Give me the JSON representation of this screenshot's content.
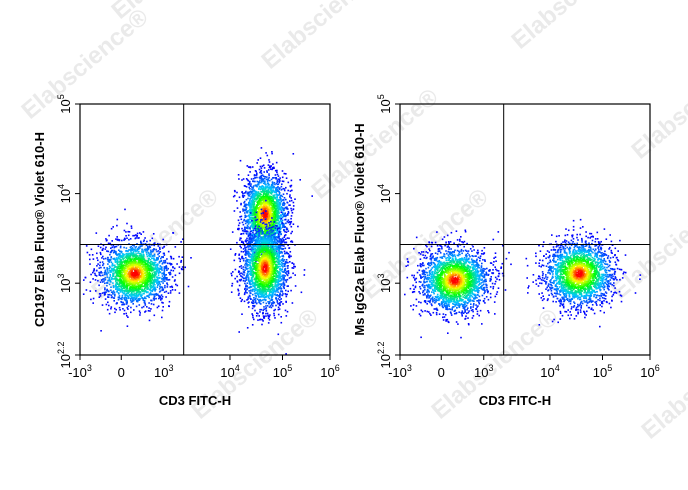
{
  "watermark_text": "Elabscience",
  "watermark_symbol": "®",
  "chart_data": [
    {
      "type": "scatter",
      "subtype": "flow-cytometry-density-plot",
      "title": "",
      "xlabel": "CD3 FITC-H",
      "ylabel": "CD197 Elab Fluor® Violet 610-H",
      "x_scale": "biexponential",
      "y_scale": "log",
      "x_ticks": [
        {
          "base": "-10",
          "exp": "3"
        },
        {
          "base": "0",
          "exp": ""
        },
        {
          "base": "10",
          "exp": "3"
        },
        {
          "base": "10",
          "exp": "4"
        },
        {
          "base": "10",
          "exp": "5"
        },
        {
          "base": "10",
          "exp": "6"
        }
      ],
      "y_ticks": [
        {
          "base": "10",
          "exp": "2.2"
        },
        {
          "base": "10",
          "exp": "3"
        },
        {
          "base": "10",
          "exp": "4"
        },
        {
          "base": "10",
          "exp": "5"
        }
      ],
      "xlim": [
        -1000,
        1000000
      ],
      "ylim": [
        158,
        100000
      ],
      "gate": {
        "x": 2000,
        "y": 2700
      },
      "populations": [
        {
          "x": 300,
          "y": 1300,
          "density": "high"
        },
        {
          "x": 45000,
          "y": 6000,
          "density": "high"
        },
        {
          "x": 45000,
          "y": 1500,
          "density": "high"
        }
      ],
      "colormap": [
        "#0000ff",
        "#00c8ff",
        "#00ff00",
        "#ffff00",
        "#ff0000"
      ]
    },
    {
      "type": "scatter",
      "subtype": "flow-cytometry-density-plot",
      "title": "",
      "xlabel": "CD3 FITC-H",
      "ylabel": "Ms IgG2a Elab Fluor® Violet 610-H",
      "x_scale": "biexponential",
      "y_scale": "log",
      "x_ticks": [
        {
          "base": "-10",
          "exp": "3"
        },
        {
          "base": "0",
          "exp": ""
        },
        {
          "base": "10",
          "exp": "3"
        },
        {
          "base": "10",
          "exp": "4"
        },
        {
          "base": "10",
          "exp": "5"
        },
        {
          "base": "10",
          "exp": "6"
        }
      ],
      "y_ticks": [
        {
          "base": "10",
          "exp": "2.2"
        },
        {
          "base": "10",
          "exp": "3"
        },
        {
          "base": "10",
          "exp": "4"
        },
        {
          "base": "10",
          "exp": "5"
        }
      ],
      "xlim": [
        -1000,
        1000000
      ],
      "ylim": [
        158,
        100000
      ],
      "gate": {
        "x": 2000,
        "y": 2700
      },
      "populations": [
        {
          "x": 300,
          "y": 1100,
          "density": "high"
        },
        {
          "x": 35000,
          "y": 1300,
          "density": "high"
        }
      ],
      "colormap": [
        "#0000ff",
        "#00c8ff",
        "#00ff00",
        "#ffff00",
        "#ff0000"
      ]
    }
  ]
}
